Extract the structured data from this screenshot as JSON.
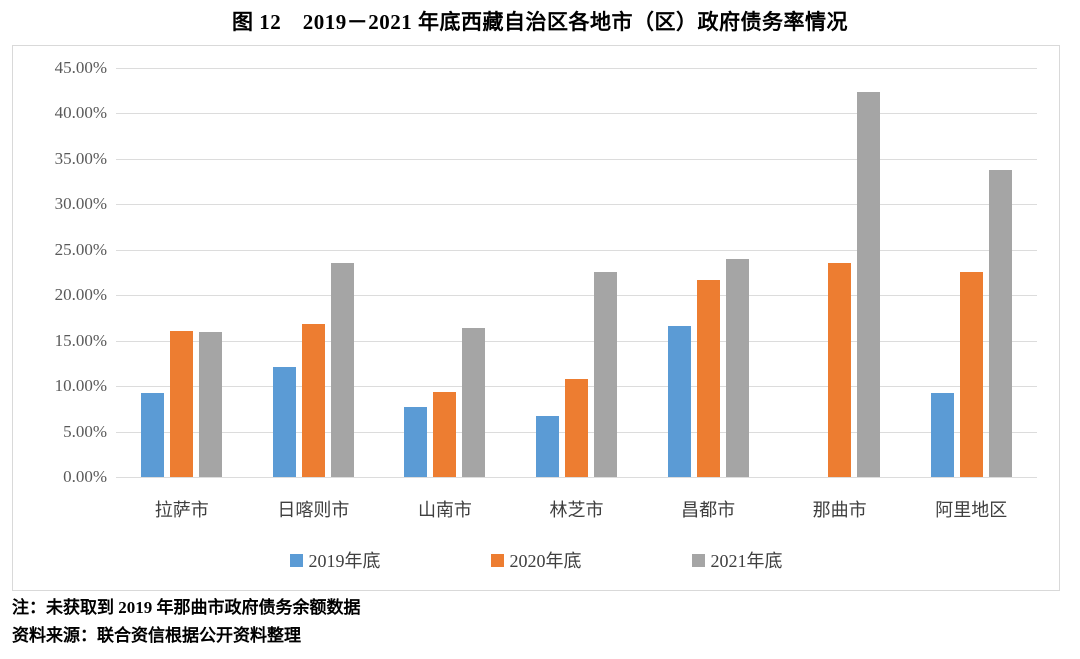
{
  "page": {
    "title": "图 12　2019－2021 年底西藏自治区各地市（区）政府债务率情况",
    "note": "注：未获取到 2019 年那曲市政府债务余额数据",
    "source": "资料来源：联合资信根据公开资料整理"
  },
  "colors": {
    "series_2019": "#5b9bd5",
    "series_2020": "#ed7d31",
    "series_2021": "#a5a5a5",
    "gridline": "#dcdcdc",
    "axis_text": "#595959",
    "frame_border": "#d9d9d9"
  },
  "chart_data": {
    "type": "bar",
    "title": "图 12　2019－2021 年底西藏自治区各地市（区）政府债务率情况",
    "categories": [
      "拉萨市",
      "日喀则市",
      "山南市",
      "林芝市",
      "昌都市",
      "那曲市",
      "阿里地区"
    ],
    "series": [
      {
        "name": "2019年底",
        "color": "#5b9bd5",
        "values": [
          9.2,
          12.1,
          7.7,
          6.7,
          16.6,
          null,
          9.2
        ]
      },
      {
        "name": "2020年底",
        "color": "#ed7d31",
        "values": [
          16.1,
          16.8,
          9.3,
          10.8,
          21.7,
          23.5,
          22.6
        ]
      },
      {
        "name": "2021年底",
        "color": "#a5a5a5",
        "values": [
          16.0,
          23.6,
          16.4,
          22.6,
          24.0,
          42.4,
          33.8
        ]
      }
    ],
    "ylabel": "",
    "xlabel": "",
    "ylim": [
      0,
      45
    ],
    "ytick_step": 5,
    "yticks": [
      "45.00%",
      "40.00%",
      "35.00%",
      "30.00%",
      "25.00%",
      "20.00%",
      "15.00%",
      "10.00%",
      "5.00%",
      "0.00%"
    ],
    "grid": true,
    "legend_position": "bottom",
    "annotation": "2019 value for 那曲市 missing (see note)"
  }
}
